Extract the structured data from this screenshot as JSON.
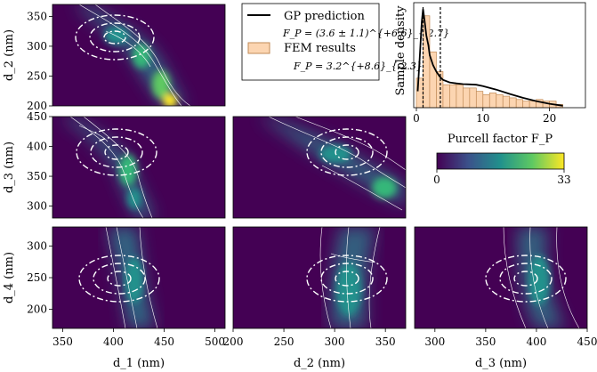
{
  "chart_data": {
    "type": "heatmap",
    "colors": {
      "cmap_low": "#440154",
      "cmap_mid": "#21918c",
      "cmap_high": "#fde725",
      "gp_line": "#000000",
      "fem_bar_fill": "#fcd5b1",
      "fem_bar_edge": "#c08a56",
      "contour": "#ffffff"
    },
    "colorbar": {
      "min_label": "0",
      "max_label": "33",
      "label": "Purcell factor F_P",
      "min": 0,
      "max": 33
    },
    "legend": {
      "gp_label": "GP prediction",
      "gp_fp": "F_P = (3.6 ± 1.1)^{+6.6}_{-2.7}",
      "fem_label": "FEM results",
      "fem_fp": "F_P = 3.2^{+8.6}_{-2.3}"
    },
    "histogram": {
      "ylabel": "Sample density",
      "xlabel": "Purcell factor F_P",
      "xlim": [
        0,
        25
      ],
      "xticks": [
        0,
        10,
        20
      ],
      "bin_edges": [
        0,
        1,
        2,
        3,
        4,
        5,
        6,
        7,
        8,
        9,
        10,
        11,
        12,
        13,
        14,
        15,
        16,
        17,
        18,
        19,
        20,
        21,
        22
      ],
      "fem_density": [
        0.09,
        0.28,
        0.17,
        0.11,
        0.07,
        0.07,
        0.07,
        0.06,
        0.06,
        0.05,
        0.04,
        0.045,
        0.04,
        0.035,
        0.03,
        0.025,
        0.02,
        0.02,
        0.025,
        0.02,
        0.02,
        0.01
      ],
      "gp_curve": {
        "x": [
          0.2,
          0.5,
          0.8,
          1.0,
          1.2,
          1.5,
          1.8,
          2.0,
          2.5,
          3.0,
          3.5,
          4.0,
          5.0,
          6.0,
          7.0,
          8.0,
          9.0,
          10.0,
          12.0,
          14.0,
          16.0,
          18.0,
          20.0,
          22.0
        ],
        "y": [
          0.05,
          0.15,
          0.26,
          0.3,
          0.27,
          0.22,
          0.19,
          0.16,
          0.13,
          0.11,
          0.095,
          0.085,
          0.077,
          0.074,
          0.072,
          0.071,
          0.07,
          0.066,
          0.055,
          0.042,
          0.03,
          0.02,
          0.012,
          0.006
        ]
      },
      "dashed_lines_x": [
        1.0,
        3.6
      ]
    },
    "axes": {
      "d1": {
        "label": "d_1 (nm)",
        "range": [
          340,
          510
        ],
        "ticks": [
          350,
          400,
          450,
          500
        ]
      },
      "d2": {
        "label": "d_2 (nm)",
        "range": [
          200,
          370
        ],
        "ticks": [
          200,
          250,
          300,
          350
        ]
      },
      "d3": {
        "label": "d_3 (nm)",
        "range": [
          280,
          450
        ],
        "ticks": [
          300,
          350,
          400,
          450
        ]
      },
      "d4": {
        "label": "d_4 (nm)",
        "range": [
          170,
          330
        ],
        "ticks": [
          200,
          250,
          300
        ]
      }
    }
  }
}
